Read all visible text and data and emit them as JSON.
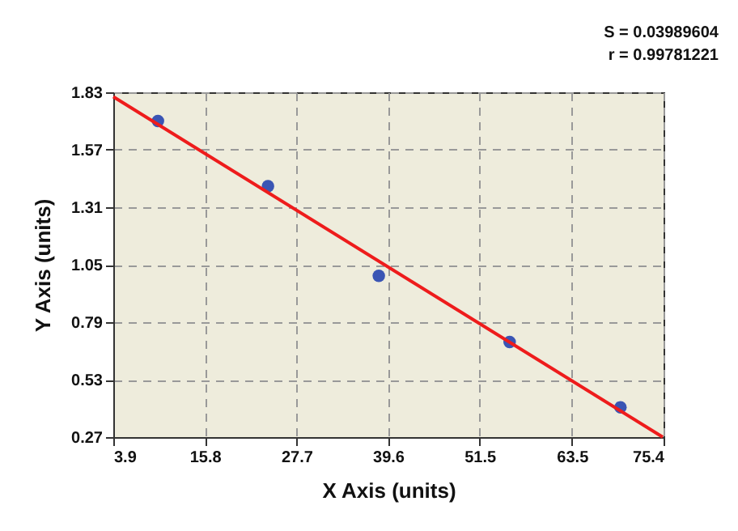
{
  "chart_data": {
    "type": "scatter",
    "xlabel": "X Axis (units)",
    "ylabel": "Y Axis (units)",
    "x": [
      9.7,
      24.0,
      38.4,
      55.4,
      69.8
    ],
    "series": [
      {
        "type": "scatter",
        "color": "#3a55b4",
        "values": [
          1.7,
          1.405,
          1.0,
          0.7,
          0.405
        ],
        "marker": "circle"
      },
      {
        "type": "line",
        "color": "#ee1c1c",
        "x": [
          3.9,
          75.3
        ],
        "values": [
          1.81,
          0.27
        ],
        "line_style": "solid"
      }
    ],
    "xlim": [
      3.9,
      75.4
    ],
    "xticks": [
      3.9,
      15.8,
      27.7,
      39.6,
      51.5,
      63.5,
      75.4
    ],
    "ylim": [
      0.27,
      1.83
    ],
    "yticks": [
      0.27,
      0.53,
      0.79,
      1.05,
      1.31,
      1.57,
      1.83
    ],
    "grid": true,
    "annotations": [
      "S = 0.03989604",
      "r = 0.99781221"
    ]
  }
}
